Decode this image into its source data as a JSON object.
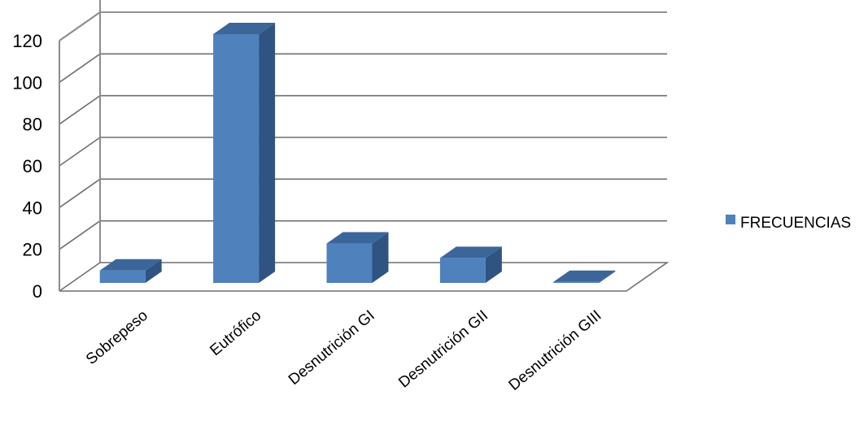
{
  "chart_data": {
    "type": "bar",
    "categories": [
      "Sobrepeso",
      "Eutrófico",
      "Desnutrición GI",
      "Desnutrición GII",
      "Desnutrición GIII"
    ],
    "series": [
      {
        "name": "FRECUENCIAS",
        "values": [
          6,
          120,
          19,
          12,
          0.5
        ]
      }
    ],
    "ylim": [
      0,
      120
    ],
    "yticks": [
      0,
      20,
      40,
      60,
      80,
      100,
      120
    ],
    "grid": true,
    "legend_position": "right",
    "colors": {
      "front": "#4f81bd",
      "side": "#2f5482",
      "top": "#3c6699",
      "grid": "#6f6f6f"
    }
  }
}
